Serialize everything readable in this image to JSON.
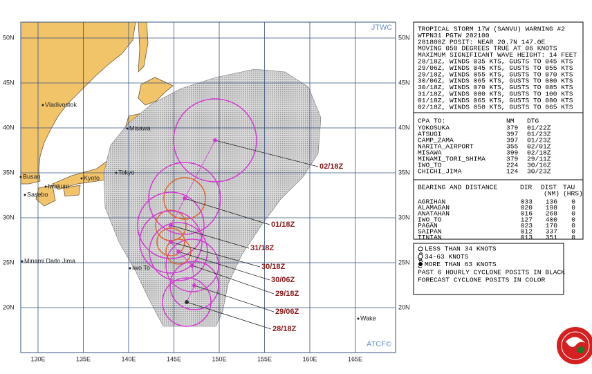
{
  "map": {
    "header": "JTWC",
    "footer": "ATCF©",
    "lat_labels": [
      "50N",
      "45N",
      "40N",
      "35N",
      "30N",
      "25N",
      "20N"
    ],
    "lon_labels": [
      "130E",
      "135E",
      "140E",
      "145E",
      "150E",
      "155E",
      "160E",
      "165E"
    ],
    "places": [
      "Vladivostok",
      "Misawa",
      "Busan",
      "Kyoto",
      "Tokyo",
      "Iwakuni",
      "Sasebo",
      "Minami Daito Jima",
      "Iwo To",
      "Wake"
    ],
    "forecast_labels": [
      "02/18Z",
      "01/18Z",
      "31/18Z",
      "30/18Z",
      "30/06Z",
      "29/18Z",
      "29/06Z",
      "28/18Z"
    ]
  },
  "warning": {
    "lines": [
      "TROPICAL STORM 17W (SANVU) WARNING #2",
      "WTPN31 PGTW 282100",
      "281800Z POSIT: NEAR 20.7N 147.0E",
      "MOVING 050 DEGREES TRUE AT 06 KNOTS",
      "MAXIMUM SIGNIFICANT WAVE HEIGHT: 14 FEET",
      "28/18Z, WINDS 035 KTS, GUSTS TO 045 KTS",
      "29/06Z, WINDS 045 KTS, GUSTS TO 055 KTS",
      "29/18Z, WINDS 055 KTS, GUSTS TO 070 KTS",
      "30/06Z, WINDS 065 KTS, GUSTS TO 080 KTS",
      "30/18Z, WINDS 070 KTS, GUSTS TO 085 KTS",
      "31/18Z, WINDS 080 KTS, GUSTS TO 100 KTS",
      "01/18Z, WINDS 065 KTS, GUSTS TO 080 KTS",
      "02/18Z, WINDS 050 KTS, GUSTS TO 065 KTS"
    ]
  },
  "cpa": {
    "header": [
      "CPA TO:",
      "NM",
      "DTG"
    ],
    "rows": [
      [
        "YOKOSUKA",
        "379",
        "01/22Z"
      ],
      [
        "ATSUGI",
        "397",
        "01/23Z"
      ],
      [
        "CAMP_ZAMA",
        "397",
        "01/23Z"
      ],
      [
        "NARITA_AIRPORT",
        "355",
        "02/01Z"
      ],
      [
        "MISAWA",
        "399",
        "02/18Z"
      ],
      [
        "MINAMI_TORI_SHIMA",
        "379",
        "29/11Z"
      ],
      [
        "IWO_TO",
        "224",
        "30/16Z"
      ],
      [
        "CHICHI_JIMA",
        "124",
        "30/23Z"
      ]
    ]
  },
  "bearing": {
    "header": [
      "BEARING AND DISTANCE",
      "DIR",
      "DIST",
      "TAU"
    ],
    "subheader": [
      "(NM)",
      "(HRS)"
    ],
    "rows": [
      [
        "AGRIHAN",
        "033",
        "136",
        "0"
      ],
      [
        "ALAMAGAN",
        "020",
        "198",
        "0"
      ],
      [
        "ANATAHAN",
        "016",
        "268",
        "0"
      ],
      [
        "IWO_TO",
        "127",
        "400",
        "0"
      ],
      [
        "PAGAN",
        "023",
        "170",
        "0"
      ],
      [
        "SAIPAN",
        "012",
        "337",
        "0"
      ],
      [
        "TINIAN",
        "013",
        "351",
        "0"
      ]
    ]
  },
  "legend": {
    "lines": [
      "LESS THAN 34 KNOTS",
      "34-63 KNOTS",
      "MORE THAN 63 KNOTS",
      "PAST 6 HOURLY CYCLONE POSITS IN BLACK",
      "FORECAST CYCLONE POSITS IN COLOR"
    ]
  }
}
